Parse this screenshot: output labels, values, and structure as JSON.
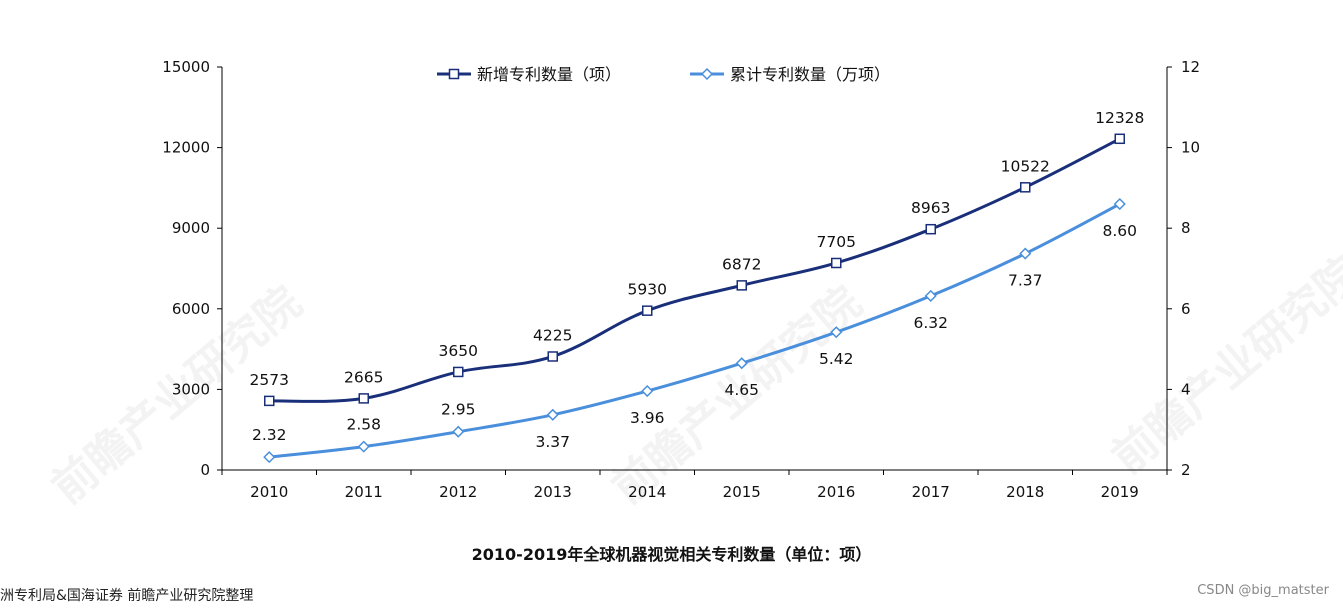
{
  "chart_data": {
    "type": "line",
    "title": "2010-2019年全球机器视觉相关专利数量（单位：项）",
    "categories": [
      "2010",
      "2011",
      "2012",
      "2013",
      "2014",
      "2015",
      "2016",
      "2017",
      "2018",
      "2019"
    ],
    "y_left": {
      "ylim": [
        0,
        15000
      ],
      "ticks": [
        "0",
        "3000",
        "6000",
        "9000",
        "12000",
        "15000"
      ]
    },
    "y_right": {
      "ylim": [
        2,
        12
      ],
      "ticks": [
        "2",
        "4",
        "6",
        "8",
        "10",
        "12"
      ]
    },
    "series": [
      {
        "name": "新增专利数量（项）",
        "axis": "left",
        "color": "#1a2f7a",
        "marker": "square",
        "values": [
          2573,
          2665,
          3650,
          4225,
          5930,
          6872,
          7705,
          8963,
          10522,
          12328
        ],
        "labels": [
          "2573",
          "2665",
          "3650",
          "4225",
          "5930",
          "6872",
          "7705",
          "8963",
          "10522",
          "12328"
        ]
      },
      {
        "name": "累计专利数量（万项）",
        "axis": "right",
        "color": "#4a8fdc",
        "marker": "diamond",
        "values": [
          2.32,
          2.58,
          2.95,
          3.37,
          3.96,
          4.65,
          5.42,
          6.32,
          7.37,
          8.6
        ],
        "labels": [
          "2.32",
          "2.58",
          "2.95",
          "3.37",
          "3.96",
          "4.65",
          "5.42",
          "6.32",
          "7.37",
          "8.60"
        ]
      }
    ],
    "legend_position": "top"
  },
  "source": "洲专利局&国海证券  前瞻产业研究院整理",
  "credit": "CSDN @big_matster",
  "watermark": "前瞻产业研究院"
}
